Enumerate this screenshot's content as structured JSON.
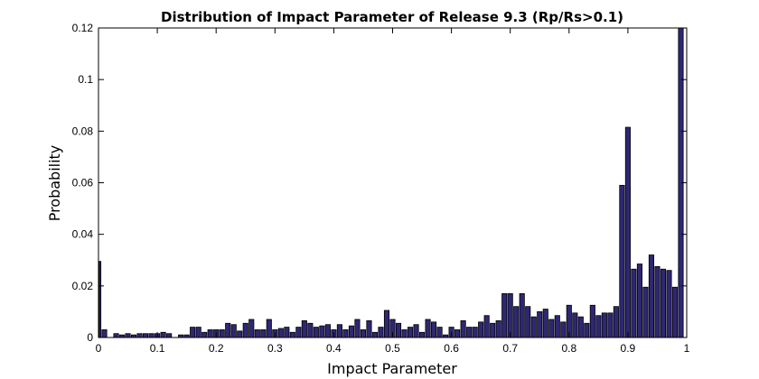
{
  "chart_data": {
    "type": "bar",
    "title": "Distribution of Impact Parameter of Release 9.3 (Rp/Rs>0.1)",
    "xlabel": "Impact Parameter",
    "ylabel": "Probability",
    "xlim": [
      0,
      1
    ],
    "ylim": [
      0,
      0.12
    ],
    "xticks": [
      "0",
      "0.1",
      "0.2",
      "0.3",
      "0.4",
      "0.5",
      "0.6",
      "0.7",
      "0.8",
      "0.9",
      "1"
    ],
    "yticks": [
      "0",
      "0.02",
      "0.04",
      "0.06",
      "0.08",
      "0.1",
      "0.12"
    ],
    "bin_width": 0.01,
    "x": [
      0,
      0.01,
      0.02,
      0.03,
      0.04,
      0.05,
      0.06,
      0.07,
      0.08,
      0.09,
      0.1,
      0.11,
      0.12,
      0.13,
      0.14,
      0.15,
      0.16,
      0.17,
      0.18,
      0.19,
      0.2,
      0.21,
      0.22,
      0.23,
      0.24,
      0.25,
      0.26,
      0.27,
      0.28,
      0.29,
      0.3,
      0.31,
      0.32,
      0.33,
      0.34,
      0.35,
      0.36,
      0.37,
      0.38,
      0.39,
      0.4,
      0.41,
      0.42,
      0.43,
      0.44,
      0.45,
      0.46,
      0.47,
      0.48,
      0.49,
      0.5,
      0.51,
      0.52,
      0.53,
      0.54,
      0.55,
      0.56,
      0.57,
      0.58,
      0.59,
      0.6,
      0.61,
      0.62,
      0.63,
      0.64,
      0.65,
      0.66,
      0.67,
      0.68,
      0.69,
      0.7,
      0.71,
      0.72,
      0.73,
      0.74,
      0.75,
      0.76,
      0.77,
      0.78,
      0.79,
      0.8,
      0.81,
      0.82,
      0.83,
      0.84,
      0.85,
      0.86,
      0.87,
      0.88,
      0.89,
      0.9,
      0.91,
      0.92,
      0.93,
      0.94,
      0.95,
      0.96,
      0.97,
      0.98,
      0.99,
      1.0
    ],
    "values": [
      0.0295,
      0.003,
      0,
      0.0015,
      0.001,
      0.0015,
      0.001,
      0.0015,
      0.0015,
      0.0015,
      0.0015,
      0.002,
      0.0015,
      0,
      0.001,
      0.001,
      0.004,
      0.004,
      0.002,
      0.003,
      0.003,
      0.003,
      0.0055,
      0.005,
      0.0025,
      0.0055,
      0.007,
      0.003,
      0.003,
      0.007,
      0.003,
      0.0035,
      0.004,
      0.002,
      0.004,
      0.0065,
      0.0055,
      0.004,
      0.0045,
      0.005,
      0.003,
      0.005,
      0.003,
      0.0045,
      0.007,
      0.003,
      0.0065,
      0.002,
      0.004,
      0.0105,
      0.007,
      0.0055,
      0.003,
      0.004,
      0.005,
      0.002,
      0.007,
      0.006,
      0.004,
      0.001,
      0.004,
      0.003,
      0.0065,
      0.004,
      0.004,
      0.006,
      0.0085,
      0.0055,
      0.0065,
      0.017,
      0.017,
      0.012,
      0.017,
      0.012,
      0.008,
      0.01,
      0.011,
      0.007,
      0.0085,
      0.006,
      0.0125,
      0.0095,
      0.008,
      0.0055,
      0.0125,
      0.0085,
      0.0095,
      0.0095,
      0.012,
      0.059,
      0.0815,
      0.0265,
      0.0285,
      0.0195,
      0.032,
      0.0275,
      0.0265,
      0.026,
      0.0195,
      0.12,
      0
    ],
    "bar_color": "#2e2773",
    "grid": false
  }
}
